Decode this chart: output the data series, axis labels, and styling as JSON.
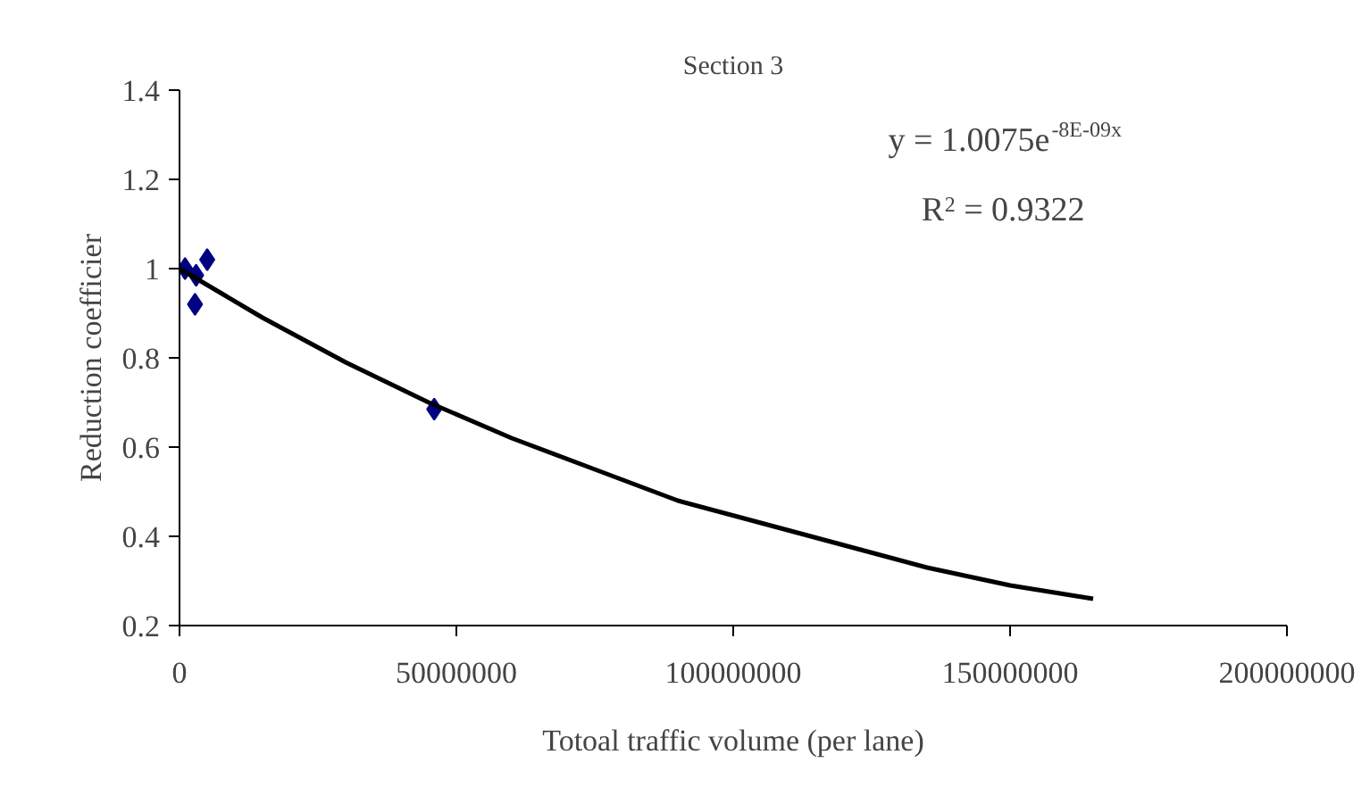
{
  "chart_data": {
    "type": "scatter",
    "title": "Section 3",
    "xlabel": "Totoal traffic volume (per lane)",
    "ylabel": "Reduction coefficier",
    "series": [
      {
        "color": "#000080",
        "marker": "diamond",
        "x": [
          1000000,
          3000000,
          2800000,
          5000000,
          46000000
        ],
        "values": [
          1.0,
          0.985,
          0.92,
          1.02,
          0.685
        ]
      },
      {
        "type": "line",
        "color": "#000000",
        "line_style": "solid",
        "marker": "none",
        "x": [
          0,
          15000000,
          30000000,
          45000000,
          60000000,
          75000000,
          90000000,
          105000000,
          120000000,
          135000000,
          150000000,
          165000000
        ],
        "values": [
          1.0,
          0.89,
          0.79,
          0.7,
          0.62,
          0.55,
          0.48,
          0.43,
          0.38,
          0.33,
          0.29,
          0.26
        ]
      }
    ],
    "annotations": [
      "y = 1.0075e$^{-8E-09x}$",
      "R$^{2}$ = 0.9322"
    ],
    "xlim": [
      0,
      200000000
    ],
    "xticks": [
      0,
      50000000,
      100000000,
      150000000,
      200000000
    ],
    "ylim": [
      0.2,
      1.4
    ],
    "yticks": [
      0.2,
      0.4,
      0.6,
      0.8,
      1,
      1.2,
      1.4
    ]
  }
}
